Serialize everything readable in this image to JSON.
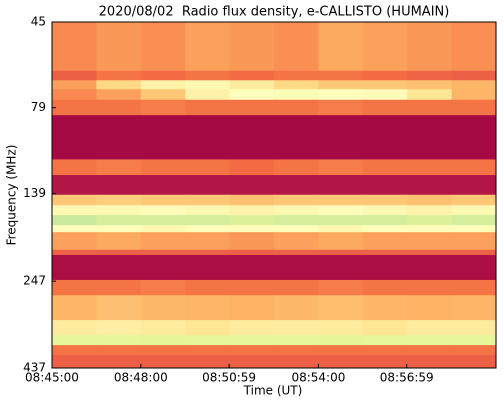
{
  "chart_data": {
    "type": "heatmap",
    "title": "2020/08/02  Radio flux density, e-CALLISTO (HUMAIN)",
    "x_label": "Time (UT)",
    "y_label": "Frequency (MHz)",
    "xlim": [
      "08:45:00",
      "09:00:00"
    ],
    "xticks": [
      "08:45:00",
      "08:48:00",
      "08:50:59",
      "08:54:00",
      "08:56:59"
    ],
    "ylim": [
      45,
      437
    ],
    "yticks": [
      45,
      79,
      139,
      247,
      437
    ],
    "y_log": true,
    "y_inverted": true,
    "x_bins": [
      "08:45:00",
      "08:46:30",
      "08:48:00",
      "08:49:30",
      "08:51:00",
      "08:52:30",
      "08:54:00",
      "08:55:30",
      "08:57:00",
      "08:58:30",
      "09:00:00"
    ],
    "y_bins": [
      45,
      62,
      66,
      70,
      75,
      83,
      111,
      123,
      140,
      150,
      160,
      171,
      179,
      201,
      208,
      245,
      271,
      319,
      352,
      376,
      401,
      437
    ],
    "colormap": [
      "#9e0142",
      "#d53e4f",
      "#f46d43",
      "#fdae61",
      "#fee08b",
      "#ffffbf",
      "#e6f598",
      "#abdda4"
    ],
    "values": [
      [
        0.35,
        0.38,
        0.36,
        0.4,
        0.38,
        0.36,
        0.42,
        0.4,
        0.38,
        0.36
      ],
      [
        0.25,
        0.3,
        0.28,
        0.3,
        0.28,
        0.3,
        0.3,
        0.28,
        0.26,
        0.25
      ],
      [
        0.4,
        0.55,
        0.65,
        0.68,
        0.62,
        0.55,
        0.5,
        0.5,
        0.48,
        0.45
      ],
      [
        0.35,
        0.4,
        0.5,
        0.65,
        0.72,
        0.75,
        0.72,
        0.7,
        0.6,
        0.45
      ],
      [
        0.3,
        0.3,
        0.32,
        0.3,
        0.3,
        0.3,
        0.32,
        0.3,
        0.3,
        0.3
      ],
      [
        0.02,
        0.02,
        0.02,
        0.02,
        0.02,
        0.02,
        0.02,
        0.02,
        0.02,
        0.02
      ],
      [
        0.3,
        0.32,
        0.3,
        0.3,
        0.28,
        0.3,
        0.32,
        0.3,
        0.3,
        0.3
      ],
      [
        0.05,
        0.05,
        0.05,
        0.05,
        0.05,
        0.05,
        0.05,
        0.05,
        0.05,
        0.05
      ],
      [
        0.5,
        0.52,
        0.5,
        0.5,
        0.48,
        0.5,
        0.5,
        0.5,
        0.48,
        0.5
      ],
      [
        0.68,
        0.68,
        0.7,
        0.68,
        0.66,
        0.68,
        0.7,
        0.68,
        0.66,
        0.68
      ],
      [
        0.92,
        0.9,
        0.9,
        0.9,
        0.88,
        0.9,
        0.9,
        0.9,
        0.88,
        0.9
      ],
      [
        0.7,
        0.7,
        0.68,
        0.7,
        0.7,
        0.7,
        0.68,
        0.7,
        0.7,
        0.7
      ],
      [
        0.4,
        0.42,
        0.4,
        0.4,
        0.38,
        0.4,
        0.42,
        0.4,
        0.4,
        0.4
      ],
      [
        0.25,
        0.25,
        0.25,
        0.25,
        0.25,
        0.25,
        0.25,
        0.25,
        0.25,
        0.25
      ],
      [
        0.03,
        0.03,
        0.03,
        0.03,
        0.03,
        0.03,
        0.03,
        0.03,
        0.03,
        0.03
      ],
      [
        0.3,
        0.3,
        0.32,
        0.3,
        0.3,
        0.3,
        0.32,
        0.3,
        0.3,
        0.3
      ],
      [
        0.45,
        0.48,
        0.46,
        0.45,
        0.44,
        0.46,
        0.47,
        0.45,
        0.44,
        0.45
      ],
      [
        0.62,
        0.64,
        0.62,
        0.6,
        0.62,
        0.63,
        0.62,
        0.6,
        0.62,
        0.62
      ],
      [
        0.85,
        0.85,
        0.86,
        0.85,
        0.85,
        0.85,
        0.86,
        0.85,
        0.85,
        0.85
      ],
      [
        0.3,
        0.3,
        0.3,
        0.3,
        0.3,
        0.3,
        0.3,
        0.3,
        0.3,
        0.3
      ],
      [
        0.25,
        0.25,
        0.25,
        0.25,
        0.25,
        0.25,
        0.25,
        0.25,
        0.25,
        0.25
      ]
    ]
  }
}
